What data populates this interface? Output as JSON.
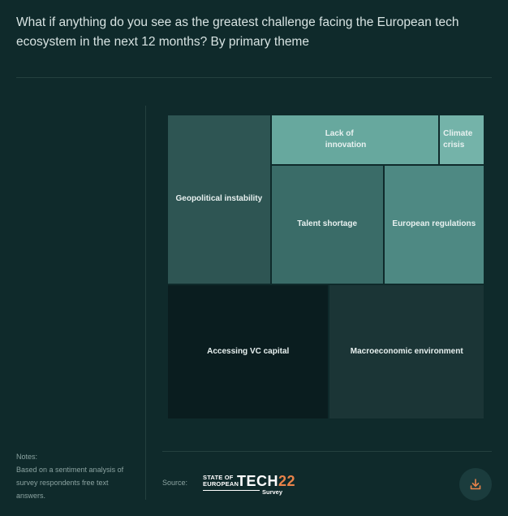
{
  "header": {
    "question": "What if anything do you see as the greatest challenge facing the European tech ecosystem in the next 12 months? By primary theme"
  },
  "notes": {
    "label": "Notes:",
    "text": "Based on a sentiment analysis of survey respondents free text answers."
  },
  "footer": {
    "source_label": "Source:",
    "logo": {
      "line1": "STATE OF",
      "line2": "EUROPEAN",
      "big": "TECH",
      "year": "22",
      "sub": "Survey"
    },
    "download_icon": "download-icon"
  },
  "chart_data": {
    "type": "treemap",
    "title": "",
    "items": [
      {
        "label": "Accessing VC capital",
        "value": 20.2,
        "color": "#0a1d1f"
      },
      {
        "label": "Macroeconomic environment",
        "value": 19.4,
        "color": "#1b3536"
      },
      {
        "label": "Geopolitical instability",
        "value": 16.2,
        "color": "#2e5553"
      },
      {
        "label": "Talent shortage",
        "value": 12.4,
        "color": "#3a6c68"
      },
      {
        "label": "European regulations",
        "value": 11.1,
        "color": "#4e8983"
      },
      {
        "label": "Lack of innovation",
        "value": 7.8,
        "color": "#67a89e"
      },
      {
        "label": "Climate crisis",
        "value": 2.1,
        "color": "#74b3a9"
      }
    ]
  }
}
